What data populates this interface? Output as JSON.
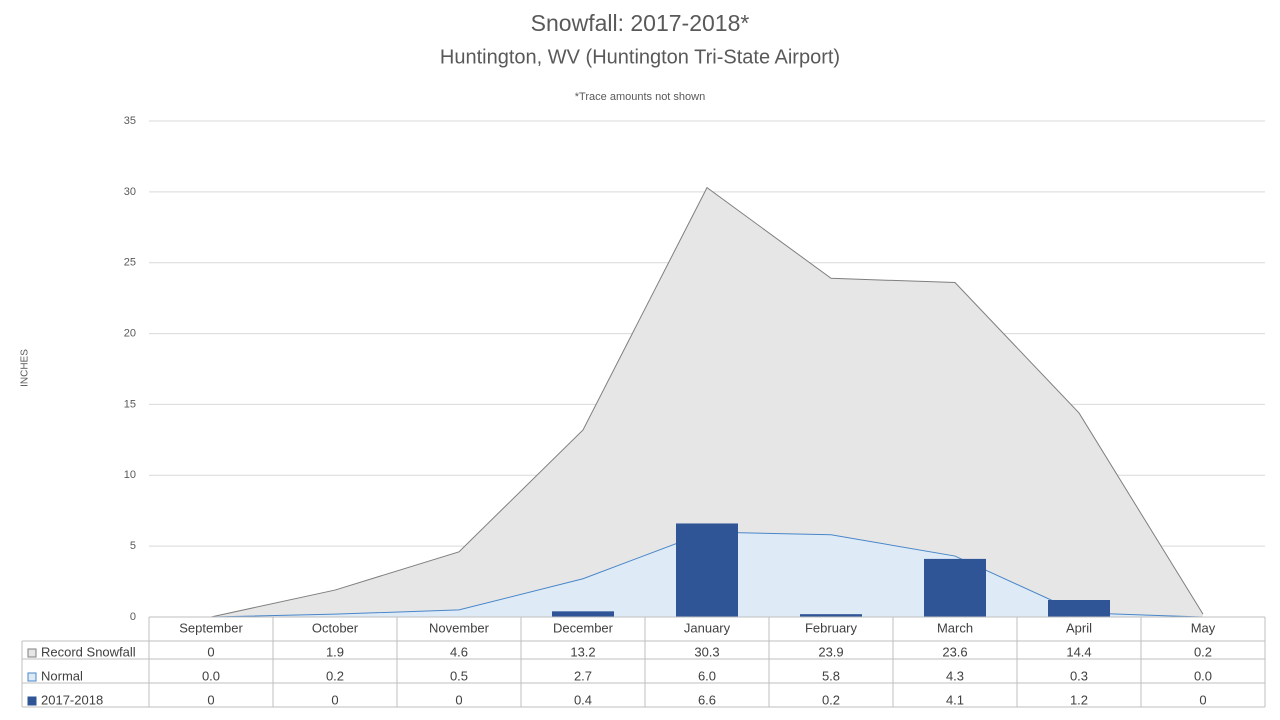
{
  "chart_data": {
    "type": "area",
    "title": "Snowfall: 2017-2018*",
    "subtitle": "Huntington, WV (Huntington Tri-State Airport)",
    "annotation": "*Trace amounts not shown",
    "y_label": "INCHES",
    "categories": [
      "September",
      "October",
      "November",
      "December",
      "January",
      "February",
      "March",
      "April",
      "May"
    ],
    "series": [
      {
        "name": "Record Snowfall",
        "type": "area",
        "color": "#e6e6e6",
        "line_color": "#7f7f7f",
        "values": [
          0,
          1.9,
          4.6,
          13.2,
          30.3,
          23.9,
          23.6,
          14.4,
          0.2
        ]
      },
      {
        "name": "Normal",
        "type": "area",
        "color": "#deebf7",
        "line_color": "#4a86c8",
        "values": [
          0.0,
          0.2,
          0.5,
          2.7,
          6.0,
          5.8,
          4.3,
          0.3,
          0.0
        ],
        "value_labels": [
          "0.0",
          "0.2",
          "0.5",
          "2.7",
          "6.0",
          "5.8",
          "4.3",
          "0.3",
          "0.0"
        ]
      },
      {
        "name": "2017-2018",
        "type": "bar",
        "color": "#2f5597",
        "values": [
          0,
          0,
          0,
          0.4,
          6.6,
          0.2,
          4.1,
          1.2,
          0
        ]
      }
    ],
    "ylim": [
      0,
      35
    ],
    "yticks": [
      0,
      5,
      10,
      15,
      20,
      25,
      30,
      35
    ],
    "grid": true
  }
}
